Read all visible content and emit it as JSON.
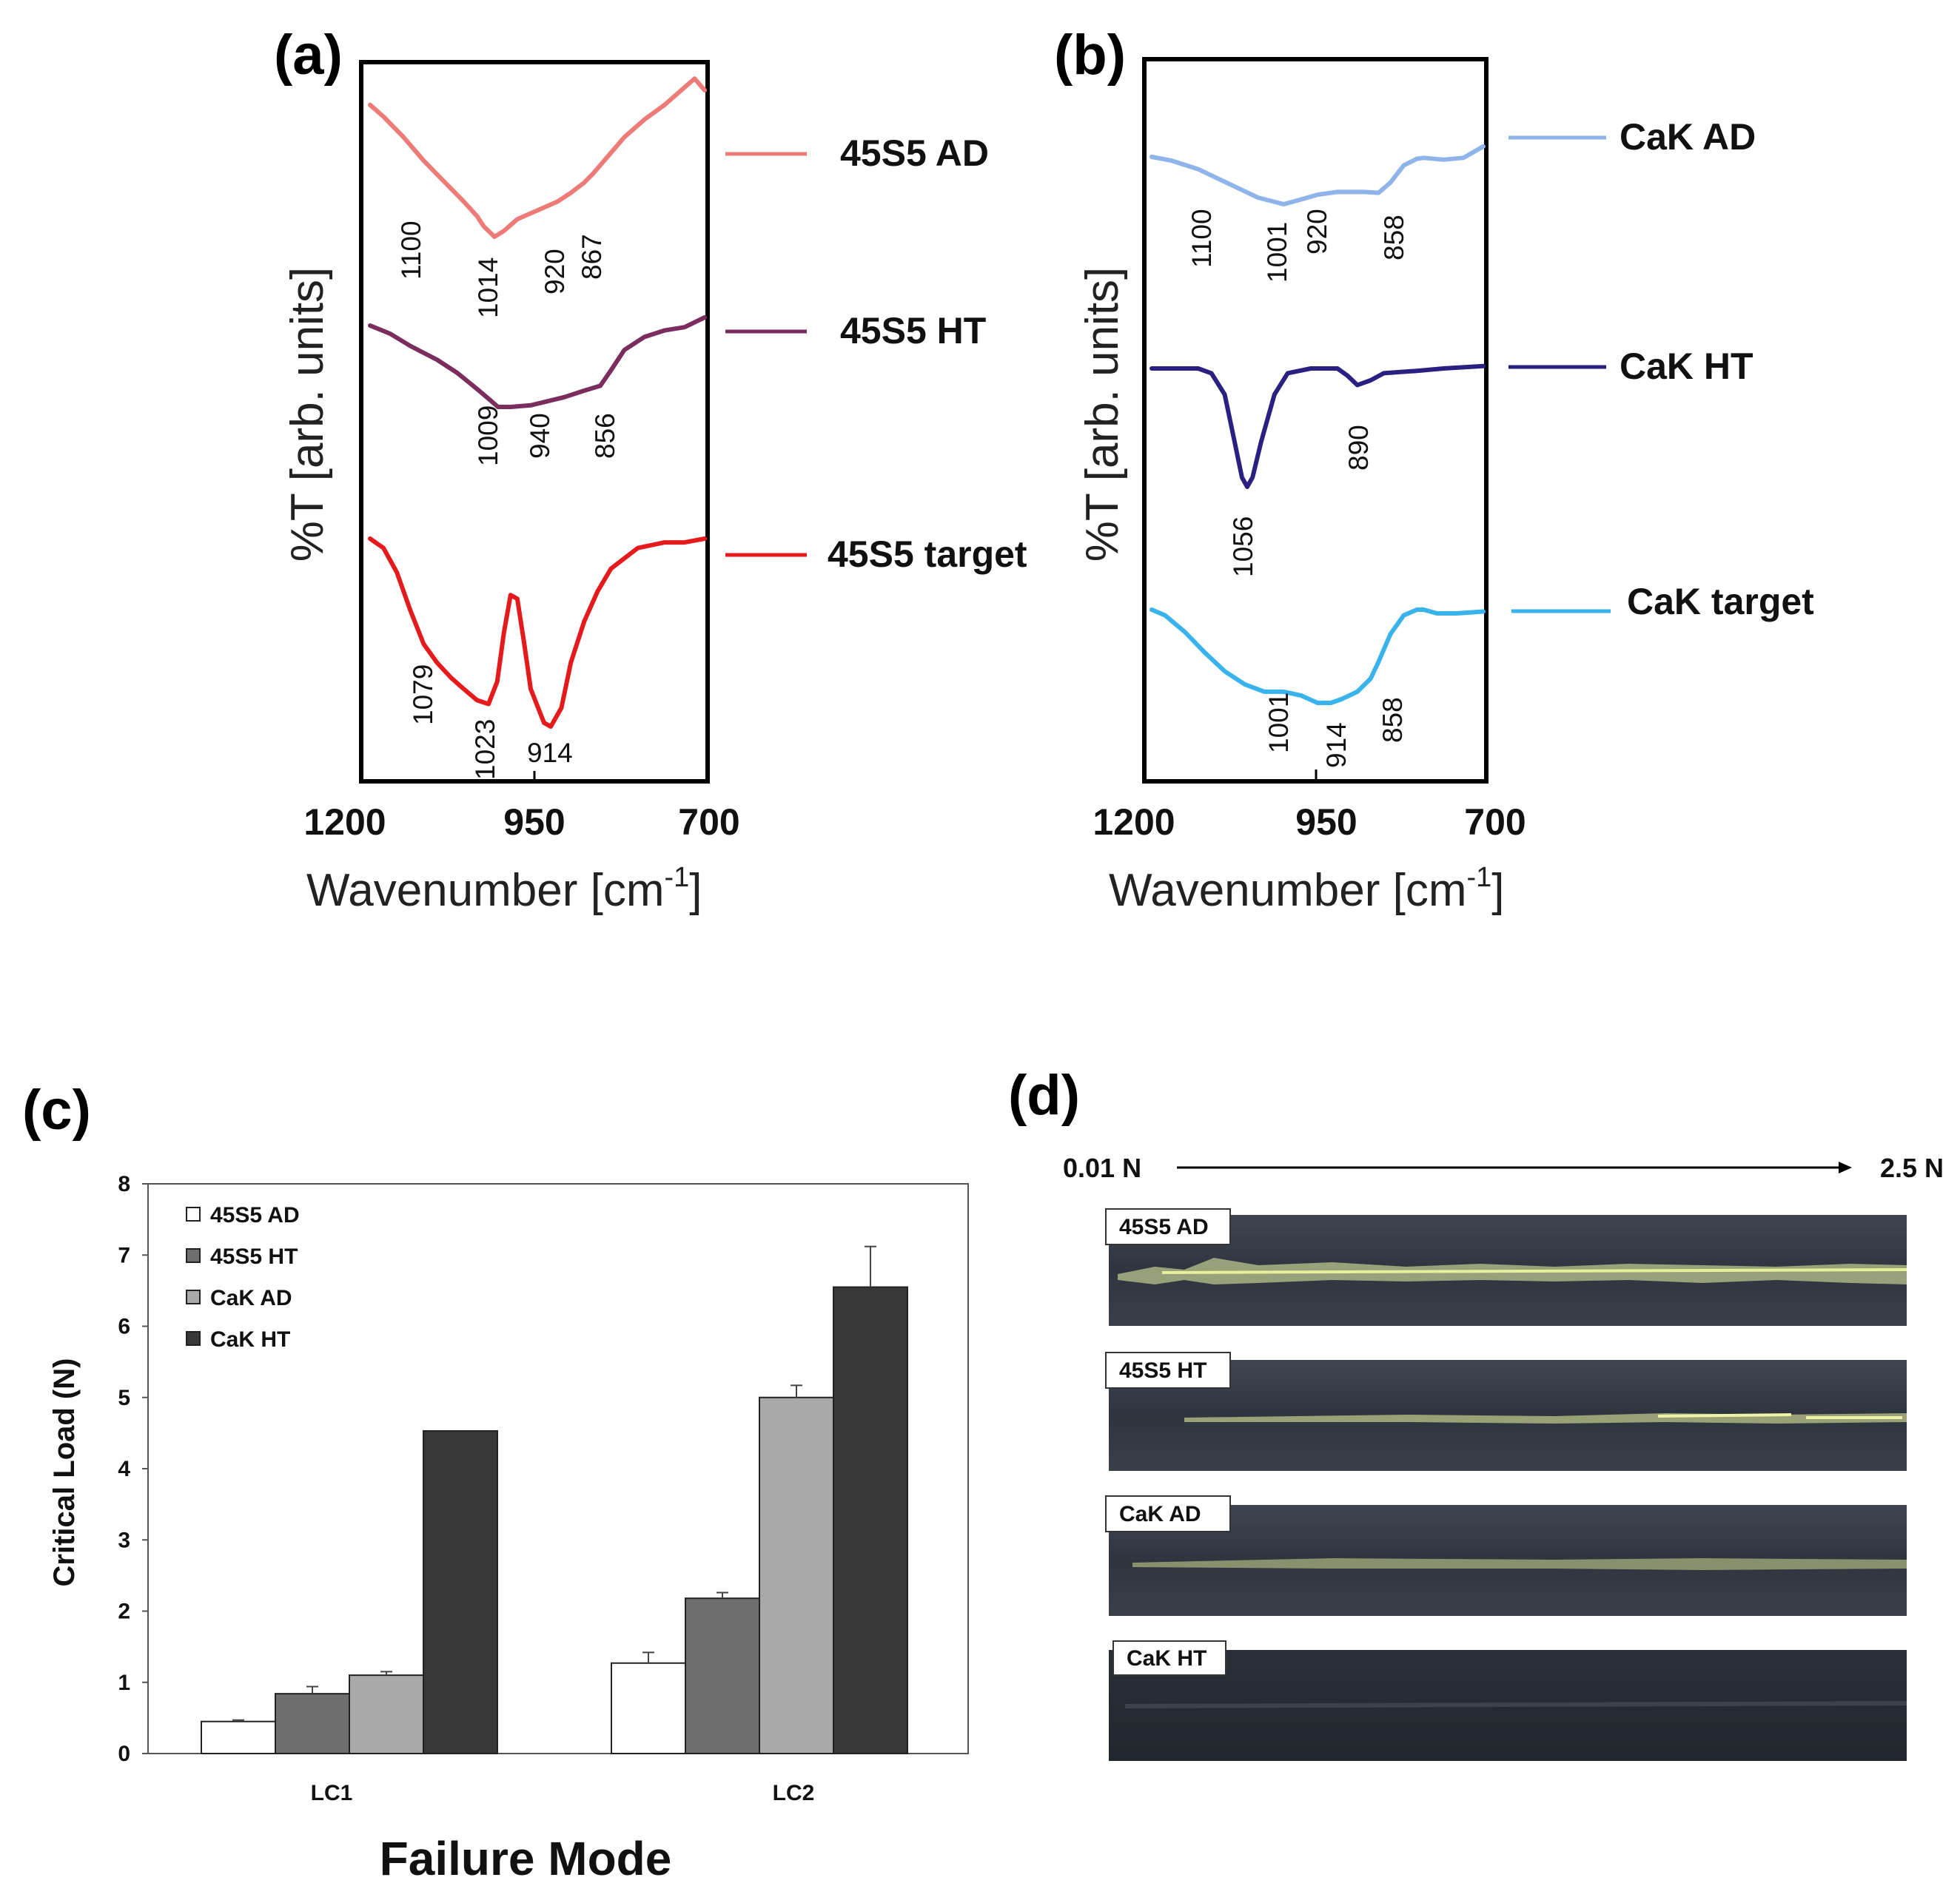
{
  "panels": {
    "a": "(a)",
    "b": "(b)",
    "c": "(c)",
    "d": "(d)"
  },
  "chart_data": [
    {
      "id": "a",
      "type": "line",
      "title": "(a)",
      "xlabel": "Wavenumber [cm",
      "xlabel_sup": "-1",
      "xlabel_close": "]",
      "ylabel": "%T [arb. units]",
      "xlim": [
        1200,
        700
      ],
      "xticks": [
        1200,
        950,
        700
      ],
      "series": [
        {
          "name": "45S5 AD",
          "color": "#ee7b77",
          "points": [
            [
              1200,
              -0.1
            ],
            [
              1180,
              -0.18
            ],
            [
              1150,
              -0.32
            ],
            [
              1120,
              -0.48
            ],
            [
              1090,
              -0.62
            ],
            [
              1060,
              -0.76
            ],
            [
              1040,
              -0.86
            ],
            [
              1030,
              -0.93
            ],
            [
              1014,
              -1.0
            ],
            [
              1000,
              -0.96
            ],
            [
              980,
              -0.88
            ],
            [
              950,
              -0.82
            ],
            [
              920,
              -0.76
            ],
            [
              900,
              -0.7
            ],
            [
              880,
              -0.63
            ],
            [
              867,
              -0.57
            ],
            [
              850,
              -0.48
            ],
            [
              820,
              -0.32
            ],
            [
              790,
              -0.2
            ],
            [
              760,
              -0.1
            ],
            [
              730,
              0.02
            ],
            [
              715,
              0.08
            ],
            [
              700,
              0.0
            ]
          ],
          "peaks": [
            "1100",
            "1014",
            "920",
            "867"
          ]
        },
        {
          "name": "45S5 HT",
          "color": "#7b2d5e",
          "points": [
            [
              1200,
              0.0
            ],
            [
              1170,
              -0.1
            ],
            [
              1140,
              -0.25
            ],
            [
              1100,
              -0.42
            ],
            [
              1070,
              -0.58
            ],
            [
              1040,
              -0.78
            ],
            [
              1020,
              -0.92
            ],
            [
              1009,
              -1.0
            ],
            [
              990,
              -1.0
            ],
            [
              960,
              -0.98
            ],
            [
              940,
              -0.94
            ],
            [
              910,
              -0.88
            ],
            [
              880,
              -0.8
            ],
            [
              856,
              -0.74
            ],
            [
              840,
              -0.55
            ],
            [
              820,
              -0.3
            ],
            [
              790,
              -0.14
            ],
            [
              760,
              -0.06
            ],
            [
              730,
              -0.02
            ],
            [
              700,
              0.1
            ]
          ],
          "peaks": [
            "1009",
            "940",
            "856"
          ]
        },
        {
          "name": "45S5 target",
          "color": "#e41a1c",
          "points": [
            [
              1200,
              0.0
            ],
            [
              1180,
              -0.05
            ],
            [
              1160,
              -0.18
            ],
            [
              1140,
              -0.38
            ],
            [
              1120,
              -0.56
            ],
            [
              1100,
              -0.66
            ],
            [
              1079,
              -0.74
            ],
            [
              1060,
              -0.8
            ],
            [
              1040,
              -0.86
            ],
            [
              1023,
              -0.88
            ],
            [
              1010,
              -0.76
            ],
            [
              1000,
              -0.5
            ],
            [
              990,
              -0.3
            ],
            [
              980,
              -0.32
            ],
            [
              970,
              -0.55
            ],
            [
              960,
              -0.8
            ],
            [
              940,
              -0.98
            ],
            [
              930,
              -1.0
            ],
            [
              914,
              -0.9
            ],
            [
              900,
              -0.66
            ],
            [
              880,
              -0.44
            ],
            [
              860,
              -0.28
            ],
            [
              840,
              -0.16
            ],
            [
              800,
              -0.05
            ],
            [
              760,
              -0.02
            ],
            [
              730,
              -0.02
            ],
            [
              700,
              0.0
            ]
          ],
          "peaks": [
            "1079",
            "1023",
            "914"
          ]
        }
      ]
    },
    {
      "id": "b",
      "type": "line",
      "title": "(b)",
      "xlabel": "Wavenumber [cm",
      "xlabel_sup": "-1",
      "xlabel_close": "]",
      "ylabel": "%T [arb. units]",
      "xlim": [
        1200,
        700
      ],
      "xticks": [
        1200,
        950,
        700
      ],
      "series": [
        {
          "name": "CaK AD",
          "color": "#8fb4ea",
          "points": [
            [
              1200,
              0.0
            ],
            [
              1170,
              -0.08
            ],
            [
              1130,
              -0.26
            ],
            [
              1100,
              -0.46
            ],
            [
              1070,
              -0.66
            ],
            [
              1040,
              -0.86
            ],
            [
              1001,
              -1.0
            ],
            [
              980,
              -0.92
            ],
            [
              950,
              -0.8
            ],
            [
              920,
              -0.74
            ],
            [
              880,
              -0.74
            ],
            [
              858,
              -0.76
            ],
            [
              840,
              -0.54
            ],
            [
              820,
              -0.18
            ],
            [
              800,
              -0.04
            ],
            [
              790,
              -0.02
            ],
            [
              760,
              -0.06
            ],
            [
              730,
              -0.02
            ],
            [
              715,
              0.1
            ],
            [
              700,
              0.22
            ]
          ],
          "peaks": [
            "1100",
            "1001",
            "920",
            "858"
          ]
        },
        {
          "name": "CaK HT",
          "color": "#2a2081",
          "points": [
            [
              1200,
              0.0
            ],
            [
              1130,
              0.0
            ],
            [
              1110,
              -0.04
            ],
            [
              1090,
              -0.22
            ],
            [
              1075,
              -0.62
            ],
            [
              1064,
              -0.92
            ],
            [
              1056,
              -1.0
            ],
            [
              1048,
              -0.92
            ],
            [
              1035,
              -0.62
            ],
            [
              1015,
              -0.22
            ],
            [
              995,
              -0.04
            ],
            [
              960,
              0.0
            ],
            [
              920,
              0.0
            ],
            [
              905,
              -0.06
            ],
            [
              890,
              -0.14
            ],
            [
              870,
              -0.1
            ],
            [
              850,
              -0.04
            ],
            [
              800,
              -0.02
            ],
            [
              760,
              0.0
            ],
            [
              700,
              0.02
            ]
          ],
          "peaks": [
            "1056",
            "890"
          ]
        },
        {
          "name": "CaK target",
          "color": "#38b3ec",
          "points": [
            [
              1200,
              0.0
            ],
            [
              1180,
              -0.06
            ],
            [
              1150,
              -0.24
            ],
            [
              1120,
              -0.46
            ],
            [
              1090,
              -0.66
            ],
            [
              1060,
              -0.8
            ],
            [
              1030,
              -0.88
            ],
            [
              1001,
              -0.88
            ],
            [
              975,
              -0.92
            ],
            [
              950,
              -1.0
            ],
            [
              930,
              -1.0
            ],
            [
              914,
              -0.96
            ],
            [
              890,
              -0.88
            ],
            [
              870,
              -0.74
            ],
            [
              858,
              -0.56
            ],
            [
              840,
              -0.26
            ],
            [
              820,
              -0.06
            ],
            [
              800,
              0.0
            ],
            [
              790,
              0.0
            ],
            [
              770,
              -0.04
            ],
            [
              740,
              -0.04
            ],
            [
              700,
              -0.02
            ]
          ],
          "peaks": [
            "1001",
            "914",
            "858"
          ]
        }
      ]
    },
    {
      "id": "c",
      "type": "bar",
      "title": "(c)",
      "xlabel": "Failure Mode",
      "ylabel": "Critical Load (N)",
      "ylim": [
        0,
        8
      ],
      "yticks": [
        "0",
        "1",
        "2",
        "3",
        "4",
        "5",
        "6",
        "7",
        "8"
      ],
      "categories": [
        "LC1",
        "LC2"
      ],
      "series": [
        {
          "name": "45S5 AD",
          "color": "#ffffff",
          "values": [
            0.45,
            1.27
          ],
          "errors": [
            0.02,
            0.15
          ]
        },
        {
          "name": "45S5 HT",
          "color": "#6e6e6e",
          "values": [
            0.84,
            2.18
          ],
          "errors": [
            0.1,
            0.08
          ]
        },
        {
          "name": "CaK AD",
          "color": "#a9a9a9",
          "values": [
            1.1,
            5.0
          ],
          "errors": [
            0.05,
            0.17
          ]
        },
        {
          "name": "CaK HT",
          "color": "#383838",
          "values": [
            4.53,
            6.55
          ],
          "errors": [
            0.0,
            0.57
          ]
        }
      ]
    }
  ],
  "scratch": {
    "start_label": "0.01 N",
    "end_label": "2.5 N",
    "tracks": [
      {
        "label": "45S5 AD"
      },
      {
        "label": "45S5 HT"
      },
      {
        "label": "CaK AD"
      },
      {
        "label": "CaK HT"
      }
    ]
  }
}
